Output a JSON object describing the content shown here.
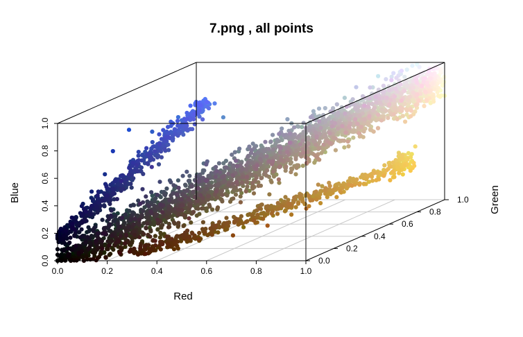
{
  "chart_data": {
    "type": "scatter",
    "title": "7.png , all points",
    "xlabel": "Red",
    "ylabel": "Green",
    "zlabel": "Blue",
    "xlim": [
      0,
      1
    ],
    "ylim": [
      0,
      1
    ],
    "zlim": [
      0,
      1
    ],
    "x_ticks": [
      "0.0",
      "0.2",
      "0.4",
      "0.6",
      "0.8",
      "1.0"
    ],
    "y_ticks": [
      "0.0",
      "0.2",
      "0.4",
      "0.6",
      "0.8",
      "1.0"
    ],
    "z_ticks": [
      "0.0",
      "0.2",
      "0.4",
      "0.6",
      "0.8",
      "1.0"
    ],
    "grid": true,
    "point_colors": "rgb(red, green, blue) of each point",
    "points": [
      [
        0.02,
        0.02,
        0.02
      ],
      [
        0.05,
        0.04,
        0.06
      ],
      [
        0.08,
        0.06,
        0.1
      ],
      [
        0.1,
        0.08,
        0.18
      ],
      [
        0.06,
        0.07,
        0.3
      ],
      [
        0.07,
        0.12,
        0.45
      ],
      [
        0.09,
        0.18,
        0.55
      ],
      [
        0.1,
        0.22,
        0.7
      ],
      [
        0.12,
        0.3,
        0.82
      ],
      [
        0.18,
        0.36,
        0.78
      ],
      [
        0.24,
        0.44,
        0.85
      ],
      [
        0.3,
        0.5,
        0.86
      ],
      [
        0.36,
        0.55,
        0.8
      ],
      [
        0.2,
        0.18,
        0.25
      ],
      [
        0.3,
        0.28,
        0.35
      ],
      [
        0.4,
        0.38,
        0.45
      ],
      [
        0.5,
        0.48,
        0.55
      ],
      [
        0.6,
        0.58,
        0.64
      ],
      [
        0.7,
        0.68,
        0.72
      ],
      [
        0.8,
        0.78,
        0.8
      ],
      [
        0.9,
        0.88,
        0.86
      ],
      [
        0.96,
        0.94,
        0.9
      ],
      [
        0.3,
        0.15,
        0.08
      ],
      [
        0.42,
        0.22,
        0.1
      ],
      [
        0.55,
        0.28,
        0.06
      ],
      [
        0.65,
        0.35,
        0.1
      ],
      [
        0.75,
        0.45,
        0.18
      ],
      [
        0.85,
        0.6,
        0.28
      ],
      [
        0.95,
        0.8,
        0.35
      ],
      [
        0.96,
        0.86,
        0.45
      ],
      [
        0.45,
        0.55,
        0.4
      ],
      [
        0.5,
        0.6,
        0.45
      ],
      [
        0.35,
        0.3,
        0.3
      ],
      [
        0.55,
        0.42,
        0.38
      ],
      [
        0.7,
        0.55,
        0.5
      ],
      [
        0.82,
        0.7,
        0.62
      ]
    ]
  }
}
